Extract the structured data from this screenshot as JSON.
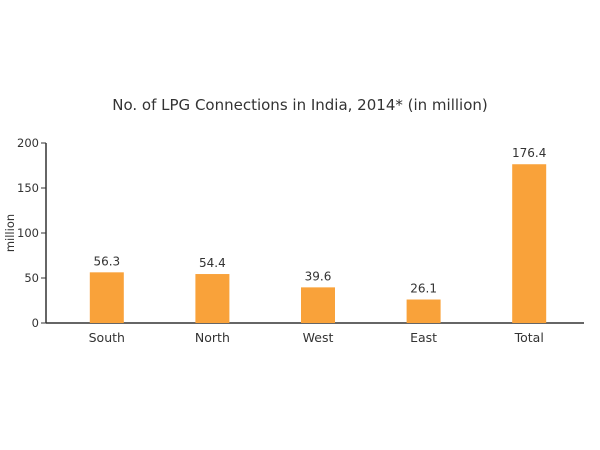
{
  "chart_data": {
    "type": "bar",
    "title": "No. of LPG Connections in India, 2014* (in million)",
    "xlabel": "",
    "ylabel": "million",
    "categories": [
      "South",
      "North",
      "West",
      "East",
      "Total"
    ],
    "values": [
      56.3,
      54.4,
      39.6,
      26.1,
      176.4
    ],
    "data_labels": [
      "56.3",
      "54.4",
      "39.6",
      "26.1",
      "176.4"
    ],
    "ylim": [
      0,
      200
    ],
    "yticks": [
      0,
      50,
      100,
      150,
      200
    ],
    "grid": false,
    "legend": "none",
    "bar_color": "#F9A23A",
    "axis_color": "#333333"
  }
}
